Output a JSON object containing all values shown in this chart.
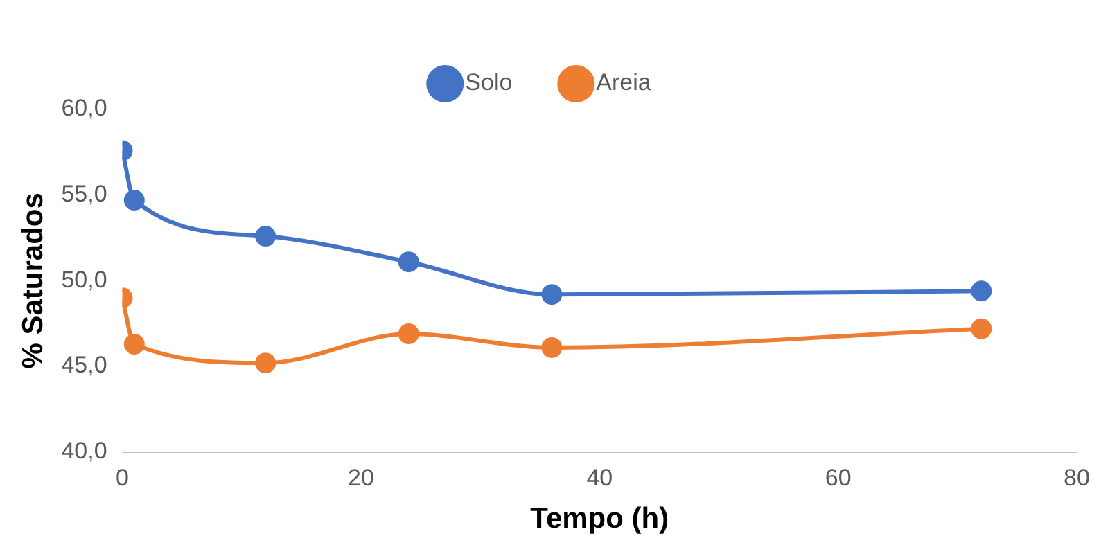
{
  "chart_data": {
    "type": "line",
    "xlabel": "Tempo (h)",
    "ylabel": "% Saturados",
    "x": [
      0,
      1,
      12,
      24,
      36,
      72
    ],
    "series": [
      {
        "name": "Solo",
        "color": "#4472c4",
        "values": [
          57.6,
          54.7,
          52.6,
          51.1,
          49.2,
          49.4
        ]
      },
      {
        "name": "Areia",
        "color": "#ed7d31",
        "values": [
          49.0,
          46.3,
          45.2,
          46.9,
          46.1,
          47.2
        ]
      }
    ],
    "xlim": [
      0,
      80
    ],
    "xticks": [
      0,
      20,
      40,
      60,
      80
    ],
    "ylim": [
      40,
      60
    ],
    "yticks": [
      {
        "value": 40,
        "label": "40,0"
      },
      {
        "value": 45,
        "label": "45,0"
      },
      {
        "value": 50,
        "label": "50,0"
      },
      {
        "value": 55,
        "label": "55,0"
      },
      {
        "value": 60,
        "label": "60,0"
      }
    ],
    "grid": false,
    "legend": "top",
    "marker": "circle",
    "line_style": "solid"
  }
}
